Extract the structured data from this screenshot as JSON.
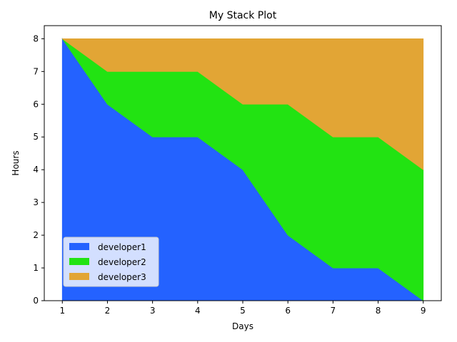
{
  "chart_data": {
    "type": "area",
    "title": "My Stack Plot",
    "xlabel": "Days",
    "ylabel": "Hours",
    "x": [
      1,
      2,
      3,
      4,
      5,
      6,
      7,
      8,
      9
    ],
    "xlim": [
      0.6,
      9.4
    ],
    "ylim": [
      0,
      8.4
    ],
    "xticks": [
      "1",
      "2",
      "3",
      "4",
      "5",
      "6",
      "7",
      "8",
      "9"
    ],
    "yticks": [
      "0",
      "1",
      "2",
      "3",
      "4",
      "5",
      "6",
      "7",
      "8"
    ],
    "stacked": true,
    "series": [
      {
        "name": "developer1",
        "color": "#2462ff",
        "values": [
          8,
          6,
          5,
          5,
          4,
          2,
          1,
          1,
          0
        ]
      },
      {
        "name": "developer2",
        "color": "#22e312",
        "values": [
          0,
          1,
          2,
          2,
          2,
          4,
          4,
          4,
          4
        ]
      },
      {
        "name": "developer3",
        "color": "#e2a535",
        "values": [
          0,
          1,
          1,
          1,
          2,
          2,
          3,
          3,
          4
        ]
      }
    ],
    "legend": "lower-left",
    "grid": false
  }
}
